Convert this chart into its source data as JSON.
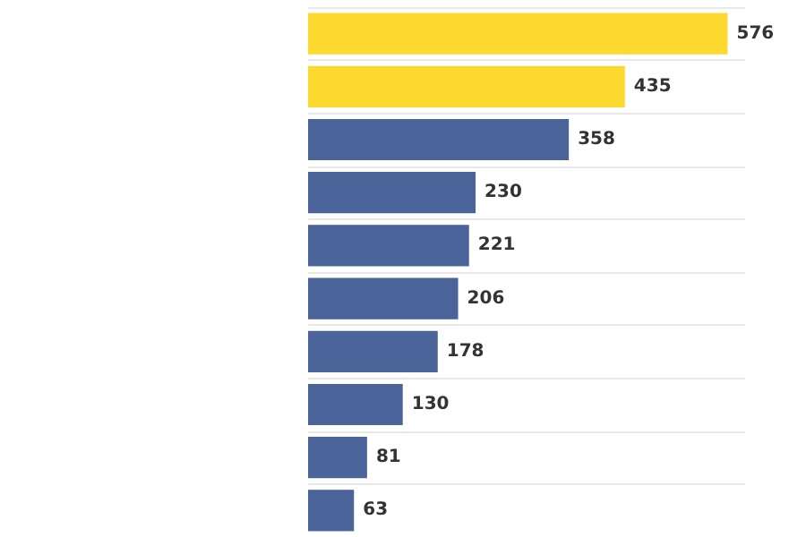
{
  "chart_data": {
    "type": "bar",
    "orientation": "horizontal",
    "categories": [
      null,
      null,
      null,
      null,
      null,
      null,
      null,
      null,
      null,
      null
    ],
    "values": [
      576,
      435,
      358,
      230,
      221,
      206,
      178,
      130,
      81,
      63
    ],
    "colors": [
      "#fcd92f",
      "#fcd92f",
      "#4a6499",
      "#4a6499",
      "#4a6499",
      "#4a6499",
      "#4a6499",
      "#4a6499",
      "#4a6499",
      "#4a6499"
    ],
    "data_labels": true,
    "grid": "y"
  }
}
